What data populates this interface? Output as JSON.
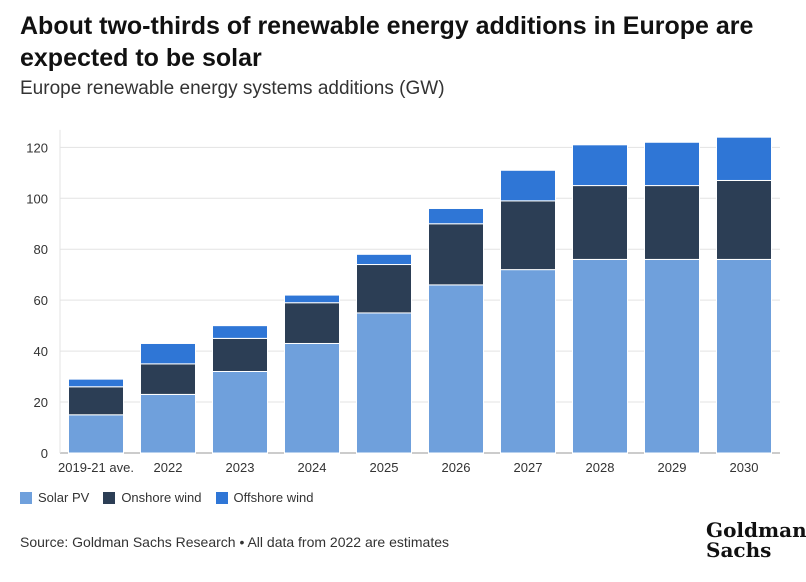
{
  "header": {
    "title": "About two-thirds of renewable energy additions in Europe are expected to be solar",
    "subtitle": "Europe renewable energy systems additions (GW)"
  },
  "chart_data": {
    "type": "bar",
    "stacked": true,
    "categories": [
      "2019-21 ave.",
      "2022",
      "2023",
      "2024",
      "2025",
      "2026",
      "2027",
      "2028",
      "2029",
      "2030"
    ],
    "series": [
      {
        "name": "Solar PV",
        "color": "#6fa0dc",
        "values": [
          15,
          23,
          32,
          43,
          55,
          66,
          72,
          76,
          76,
          76
        ]
      },
      {
        "name": "Onshore wind",
        "color": "#2c3e55",
        "values": [
          11,
          12,
          13,
          16,
          19,
          24,
          27,
          29,
          29,
          31
        ]
      },
      {
        "name": "Offshore wind",
        "color": "#2f76d6",
        "values": [
          3,
          8,
          5,
          3,
          4,
          6,
          12,
          16,
          17,
          17
        ]
      }
    ],
    "ylim": [
      0,
      130
    ],
    "yticks": [
      0,
      20,
      40,
      60,
      80,
      100,
      120
    ],
    "grid": true,
    "legend_position": "bottom-left"
  },
  "footer": {
    "source": "Source: Goldman Sachs Research • All data from 2022 are estimates",
    "logo_line1": "Goldman",
    "logo_line2": "Sachs"
  }
}
